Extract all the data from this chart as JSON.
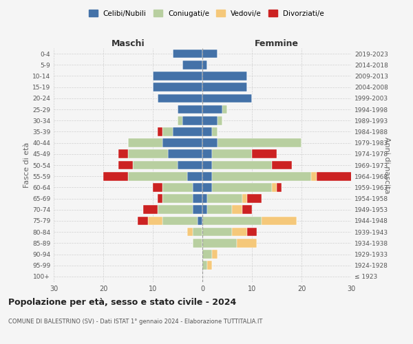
{
  "age_groups": [
    "100+",
    "95-99",
    "90-94",
    "85-89",
    "80-84",
    "75-79",
    "70-74",
    "65-69",
    "60-64",
    "55-59",
    "50-54",
    "45-49",
    "40-44",
    "35-39",
    "30-34",
    "25-29",
    "20-24",
    "15-19",
    "10-14",
    "5-9",
    "0-4"
  ],
  "birth_years": [
    "≤ 1923",
    "1924-1928",
    "1929-1933",
    "1934-1938",
    "1939-1943",
    "1944-1948",
    "1949-1953",
    "1954-1958",
    "1959-1963",
    "1964-1968",
    "1969-1973",
    "1974-1978",
    "1979-1983",
    "1984-1988",
    "1989-1993",
    "1994-1998",
    "1999-2003",
    "2004-2008",
    "2009-2013",
    "2014-2018",
    "2019-2023"
  ],
  "colors": {
    "celibi": "#4472a8",
    "coniugati": "#b8cfa0",
    "vedovi": "#f5c87a",
    "divorziati": "#cc2222"
  },
  "maschi": {
    "celibi": [
      0,
      0,
      0,
      0,
      0,
      1,
      2,
      2,
      2,
      3,
      5,
      7,
      8,
      6,
      4,
      5,
      9,
      10,
      10,
      4,
      6
    ],
    "coniugati": [
      0,
      0,
      0,
      2,
      2,
      7,
      7,
      6,
      6,
      12,
      9,
      8,
      7,
      2,
      1,
      0,
      0,
      0,
      0,
      0,
      0
    ],
    "vedovi": [
      0,
      0,
      0,
      0,
      1,
      3,
      0,
      0,
      0,
      0,
      0,
      0,
      0,
      0,
      0,
      0,
      0,
      0,
      0,
      0,
      0
    ],
    "divorziati": [
      0,
      0,
      0,
      0,
      0,
      2,
      3,
      1,
      2,
      5,
      3,
      2,
      0,
      1,
      0,
      0,
      0,
      0,
      0,
      0,
      0
    ]
  },
  "femmine": {
    "nubili": [
      0,
      0,
      0,
      0,
      0,
      0,
      1,
      1,
      2,
      2,
      2,
      2,
      3,
      2,
      3,
      4,
      10,
      9,
      9,
      1,
      3
    ],
    "coniugate": [
      0,
      1,
      2,
      7,
      6,
      12,
      5,
      7,
      12,
      20,
      12,
      8,
      17,
      1,
      1,
      1,
      0,
      0,
      0,
      0,
      0
    ],
    "vedove": [
      0,
      1,
      1,
      4,
      3,
      7,
      2,
      1,
      1,
      1,
      0,
      0,
      0,
      0,
      0,
      0,
      0,
      0,
      0,
      0,
      0
    ],
    "divorziate": [
      0,
      0,
      0,
      0,
      2,
      0,
      2,
      3,
      1,
      8,
      4,
      5,
      0,
      0,
      0,
      0,
      0,
      0,
      0,
      0,
      0
    ]
  },
  "title": "Popolazione per età, sesso e stato civile - 2024",
  "subtitle": "COMUNE DI BALESTRINO (SV) - Dati ISTAT 1° gennaio 2024 - Elaborazione TUTTITALIA.IT",
  "xlabel_left": "Maschi",
  "xlabel_right": "Femmine",
  "ylabel_left": "Fasce di età",
  "ylabel_right": "Anni di nascita",
  "xlim": 30,
  "legend_labels": [
    "Celibi/Nubili",
    "Coniugati/e",
    "Vedovi/e",
    "Divorziati/e"
  ],
  "background_color": "#f5f5f5",
  "grid_color": "#cccccc"
}
